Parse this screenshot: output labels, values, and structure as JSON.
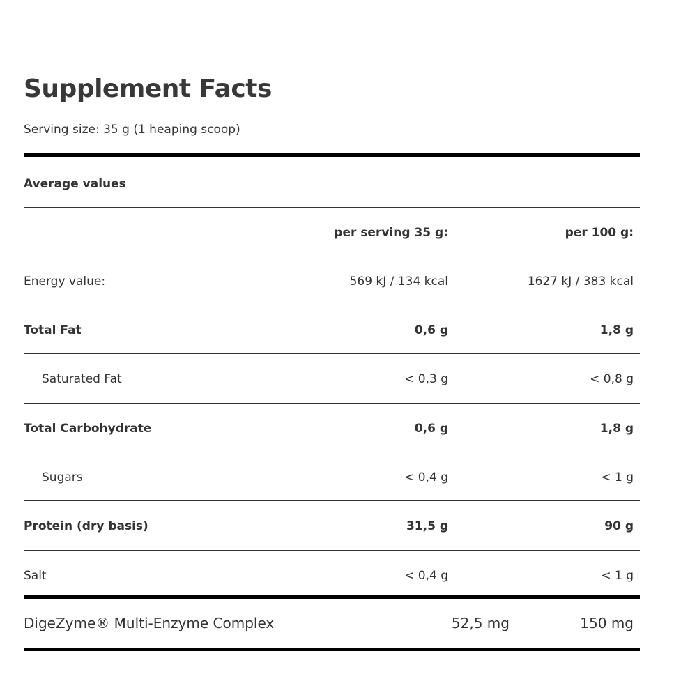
{
  "title": "Supplement Facts",
  "serving_size": "Serving size: 35 g (1 heaping scoop)",
  "average_values": "Average values",
  "headers": {
    "per_serving": "per serving 35 g:",
    "per_100g": "per 100 g:"
  },
  "rows": [
    {
      "label": "Energy value:",
      "per_serving": "569 kJ / 134 kcal",
      "per_100g": "1627 kJ / 383 kcal"
    },
    {
      "label": "Total Fat",
      "per_serving": "0,6 g",
      "per_100g": "1,8 g"
    },
    {
      "label": "Saturated Fat",
      "per_serving": "< 0,3 g",
      "per_100g": "< 0,8 g"
    },
    {
      "label": "Total Carbohydrate",
      "per_serving": "0,6 g",
      "per_100g": "1,8 g"
    },
    {
      "label": "Sugars",
      "per_serving": "< 0,4 g",
      "per_100g": "< 1 g"
    },
    {
      "label": "Protein (dry basis)",
      "per_serving": "31,5 g",
      "per_100g": "90 g"
    },
    {
      "label": "Salt",
      "per_serving": "< 0,4 g",
      "per_100g": "< 1 g"
    }
  ],
  "extra": {
    "label": "DigeZyme® Multi-Enzyme Complex",
    "per_serving": "52,5 mg",
    "per_100g": "150 mg"
  }
}
